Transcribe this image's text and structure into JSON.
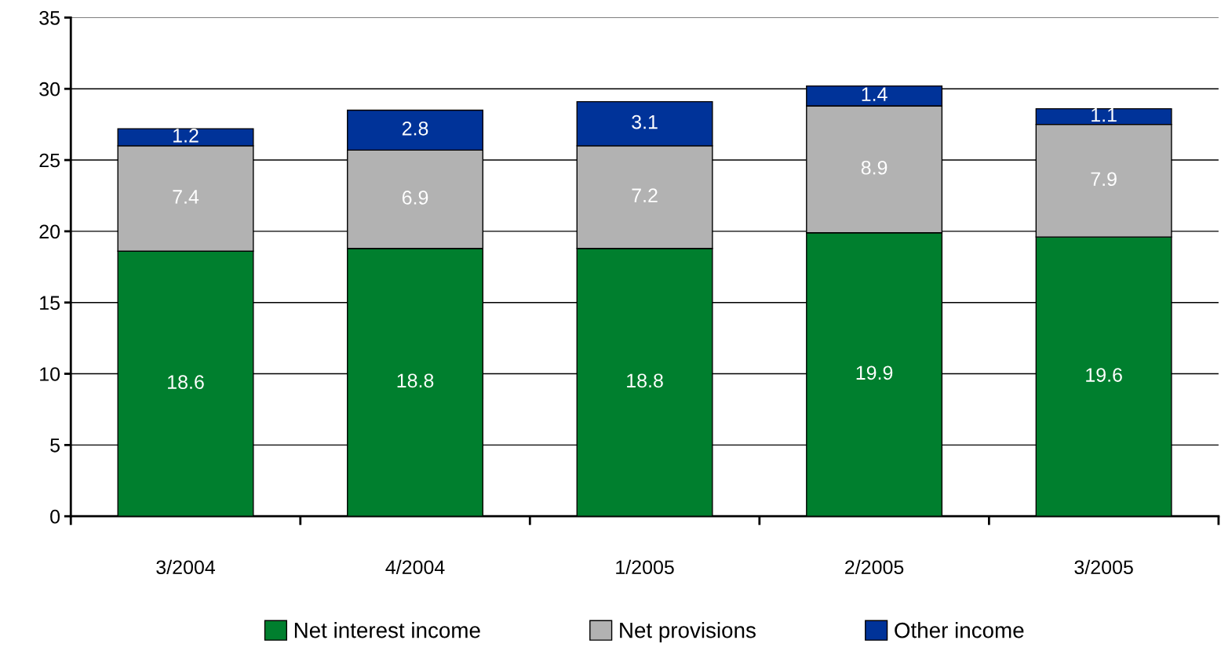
{
  "chart_data": {
    "type": "bar",
    "stacked": true,
    "categories": [
      "3/2004",
      "4/2004",
      "1/2005",
      "2/2005",
      "3/2005"
    ],
    "series": [
      {
        "name": "Net interest income",
        "color": "#007f2e",
        "values": [
          18.6,
          18.8,
          18.8,
          19.9,
          19.6
        ]
      },
      {
        "name": "Net provisions",
        "color": "#b2b2b2",
        "values": [
          7.4,
          6.9,
          7.2,
          8.9,
          7.9
        ]
      },
      {
        "name": "Other income",
        "color": "#003399",
        "values": [
          1.2,
          2.8,
          3.1,
          1.4,
          1.1
        ]
      }
    ],
    "ylim": [
      0,
      35
    ],
    "yticks": [
      0,
      5,
      10,
      15,
      20,
      25,
      30,
      35
    ],
    "grid": "y",
    "legend": "bottom",
    "data_labels": true
  }
}
